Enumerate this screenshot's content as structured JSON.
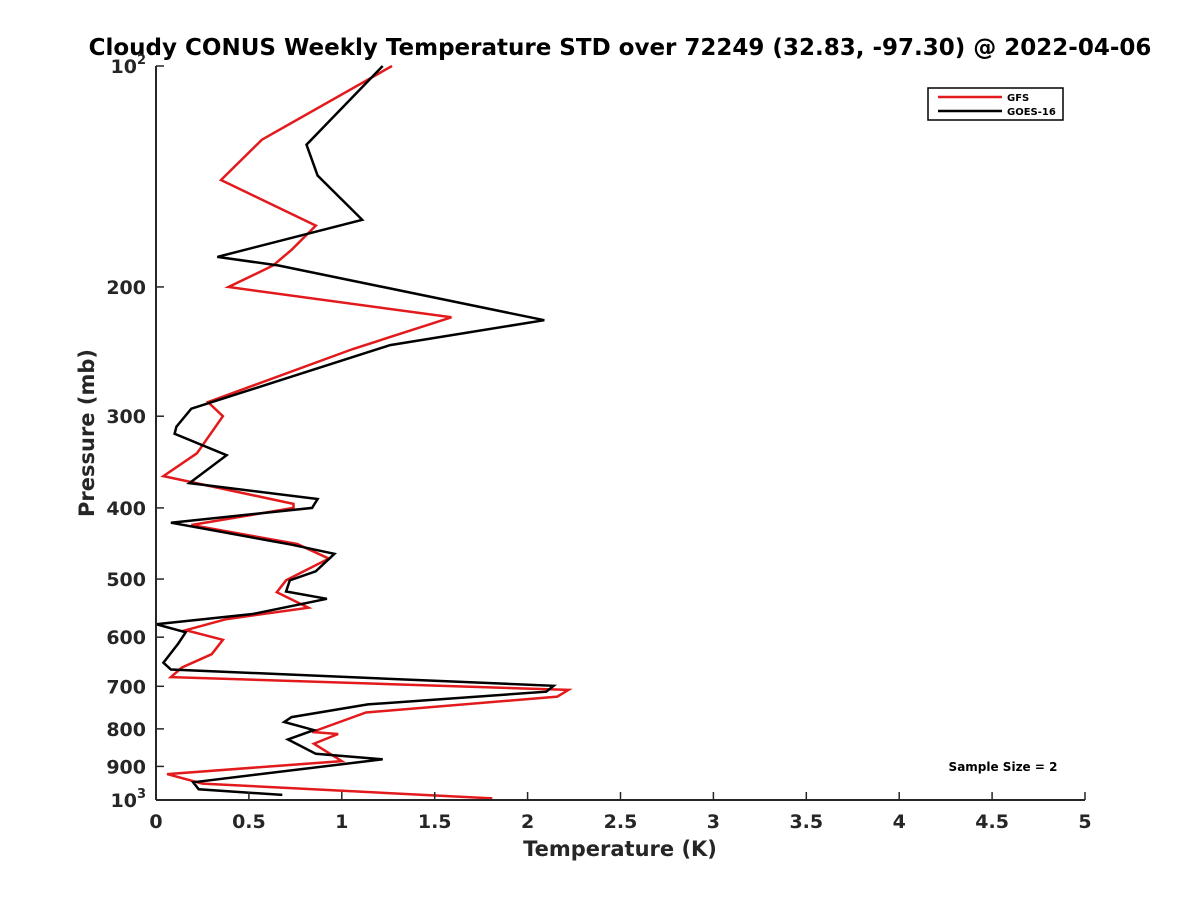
{
  "chart_data": {
    "type": "line",
    "title": "Cloudy CONUS Weekly Temperature STD over 72249 (32.83, -97.30) @ 2022-04-06",
    "xlabel": "Temperature (K)",
    "ylabel": "Pressure (mb)",
    "xlim": [
      0,
      5
    ],
    "ylim": [
      100,
      1000
    ],
    "y_scale": "log",
    "y_reversed": true,
    "grid": false,
    "legend_position": "top-right",
    "x_ticks": [
      "0",
      "0.5",
      "1",
      "1.5",
      "2",
      "2.5",
      "3",
      "3.5",
      "4",
      "4.5",
      "5"
    ],
    "y_ticks": [
      {
        "value": 100,
        "base": "10",
        "exp": "2"
      },
      {
        "value": 200,
        "label": "200"
      },
      {
        "value": 300,
        "label": "300"
      },
      {
        "value": 400,
        "label": "400"
      },
      {
        "value": 500,
        "label": "500"
      },
      {
        "value": 600,
        "label": "600"
      },
      {
        "value": 700,
        "label": "700"
      },
      {
        "value": 800,
        "label": "800"
      },
      {
        "value": 900,
        "label": "900"
      },
      {
        "value": 1000,
        "base": "10",
        "exp": "3"
      }
    ],
    "series": [
      {
        "name": "GFS",
        "color": "#e31a1c",
        "x": [
          1.27,
          0.57,
          0.35,
          0.86,
          0.73,
          0.63,
          0.39,
          1.59,
          1.06,
          0.28,
          0.36,
          0.22,
          0.04,
          0.74,
          0.74,
          0.19,
          0.76,
          0.93,
          0.7,
          0.65,
          0.82,
          0.38,
          0.16,
          0.36,
          0.3,
          0.14,
          0.08,
          2.22,
          2.16,
          1.13,
          0.84,
          0.98,
          0.85,
          1.0,
          0.06,
          0.25,
          1.81
        ],
        "y": [
          100,
          126,
          143,
          165,
          178,
          187,
          200,
          220,
          243,
          287,
          300,
          337,
          362,
          395,
          400,
          422,
          448,
          469,
          502,
          521,
          547,
          567,
          587,
          605,
          633,
          660,
          680,
          708,
          723,
          760,
          808,
          813,
          838,
          885,
          922,
          950,
          995
        ]
      },
      {
        "name": "GOES-16",
        "color": "#000000",
        "x": [
          1.22,
          0.81,
          0.87,
          1.11,
          0.33,
          0.66,
          2.09,
          1.26,
          0.19,
          0.11,
          0.1,
          0.38,
          0.18,
          0.87,
          0.84,
          0.08,
          0.73,
          0.96,
          0.86,
          0.72,
          0.7,
          0.92,
          0.52,
          0.0,
          0.16,
          0.12,
          0.04,
          0.08,
          2.14,
          2.1,
          1.14,
          0.73,
          0.69,
          0.85,
          0.71,
          0.86,
          1.22,
          0.2,
          0.23,
          0.68
        ],
        "y": [
          100,
          128,
          141,
          162,
          182,
          187,
          222,
          240,
          293,
          310,
          317,
          339,
          370,
          389,
          400,
          419,
          449,
          462,
          488,
          502,
          520,
          532,
          558,
          576,
          591,
          612,
          650,
          664,
          699,
          712,
          741,
          771,
          783,
          803,
          827,
          865,
          880,
          946,
          967,
          984
        ]
      }
    ],
    "legend": [
      {
        "label": "GFS",
        "color": "#e31a1c"
      },
      {
        "label": "GOES-16",
        "color": "#000000"
      }
    ],
    "annotations": [
      "Sample Size = 2"
    ]
  }
}
